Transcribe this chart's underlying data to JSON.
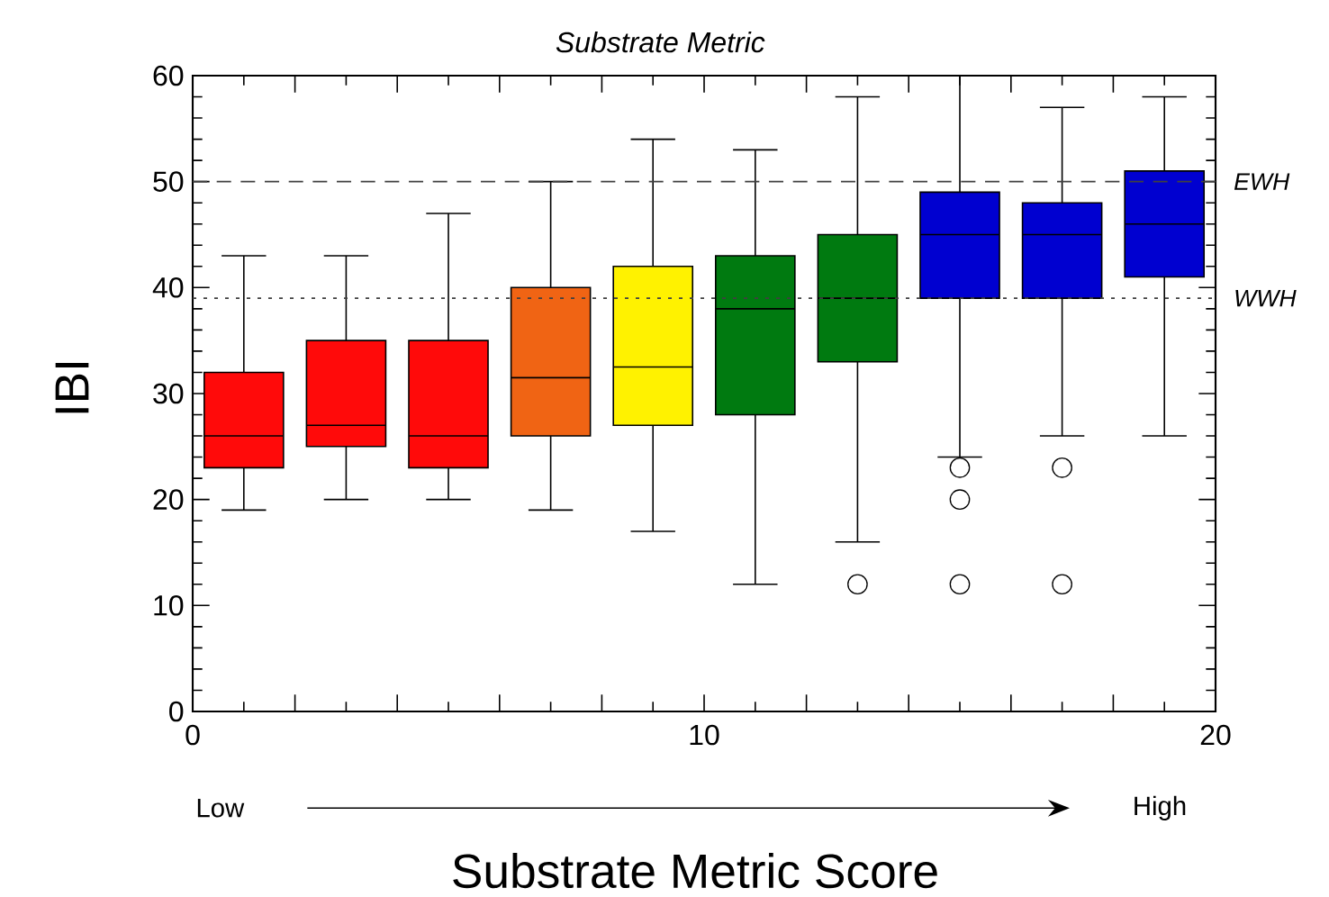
{
  "chart_data": {
    "type": "box",
    "title": "Substrate Metric",
    "xlabel": "Substrate Metric Score",
    "ylabel": "IBI",
    "x": [
      1,
      3,
      5,
      7,
      9,
      11,
      13,
      15,
      17,
      19
    ],
    "boxes": [
      {
        "low": 19,
        "q1": 23,
        "median": 26,
        "q3": 32,
        "high": 43
      },
      {
        "low": 20,
        "q1": 25,
        "median": 27,
        "q3": 35,
        "high": 43
      },
      {
        "low": 20,
        "q1": 23,
        "median": 26,
        "q3": 35,
        "high": 47
      },
      {
        "low": 19,
        "q1": 26,
        "median": 31.5,
        "q3": 40,
        "high": 50
      },
      {
        "low": 17,
        "q1": 27,
        "median": 32.5,
        "q3": 42,
        "high": 54
      },
      {
        "low": 12,
        "q1": 28,
        "median": 38,
        "q3": 43,
        "high": 53
      },
      {
        "low": 16,
        "q1": 33,
        "median": 39,
        "q3": 45,
        "high": 58,
        "outliers": [
          12
        ]
      },
      {
        "low": 24,
        "q1": 39,
        "median": 45,
        "q3": 49,
        "high": 60,
        "outliers": [
          23,
          20,
          12
        ]
      },
      {
        "low": 26,
        "q1": 39,
        "median": 45,
        "q3": 48,
        "high": 57,
        "outliers": [
          23,
          12
        ]
      },
      {
        "low": 26,
        "q1": 41,
        "median": 46,
        "q3": 51,
        "high": 58
      }
    ],
    "colors": [
      "#ff0a0a",
      "#ff0a0a",
      "#ff0a0a",
      "#f06414",
      "#fff200",
      "#007a10",
      "#007a10",
      "#0000d0",
      "#0000d0",
      "#0000d0"
    ],
    "xlim": [
      0,
      20
    ],
    "xticks": [
      0,
      {
        "value": 2,
        "label": null
      },
      {
        "value": 4,
        "label": null
      },
      {
        "value": 6,
        "label": null
      },
      {
        "value": 8,
        "label": null
      },
      10,
      {
        "value": 12,
        "label": null
      },
      {
        "value": 14,
        "label": null
      },
      {
        "value": 16,
        "label": null
      },
      {
        "value": 18,
        "label": null
      },
      20
    ],
    "ylim": [
      0,
      60
    ],
    "yticks": [
      0,
      10,
      20,
      30,
      40,
      50,
      60
    ],
    "marker": "circle",
    "ref_lines": [
      {
        "axis": "y",
        "value": 50,
        "label": "EWH",
        "line_style": "dashed",
        "color": "#404040"
      },
      {
        "axis": "y",
        "value": 39,
        "label": "WWH",
        "line_style": "dotted",
        "color": "#404040"
      }
    ],
    "annotations": [
      "Low",
      "High"
    ]
  }
}
